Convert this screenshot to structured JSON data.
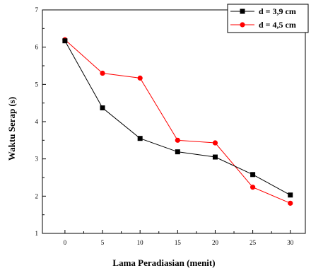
{
  "chart_data": {
    "type": "line",
    "title": "",
    "xlabel": "Lama Peradiasian (menit)",
    "ylabel": "Waktu Serap (s)",
    "xlim": [
      -3,
      32
    ],
    "ylim": [
      1,
      7
    ],
    "x_ticks": [
      0,
      5,
      10,
      15,
      20,
      25,
      30
    ],
    "y_ticks": [
      1,
      2,
      3,
      4,
      5,
      6,
      7
    ],
    "grid": false,
    "legend_position": "top-right",
    "series": [
      {
        "name": "d = 3,9 cm",
        "color": "#000000",
        "marker": "square",
        "x": [
          0,
          5,
          10,
          15,
          20,
          25,
          30
        ],
        "y": [
          6.17,
          4.37,
          3.55,
          3.19,
          3.05,
          2.58,
          2.03
        ]
      },
      {
        "name": "d = 4,5 cm",
        "color": "#ff0000",
        "marker": "circle",
        "x": [
          0,
          5,
          10,
          15,
          20,
          25,
          30
        ],
        "y": [
          6.2,
          5.3,
          5.17,
          3.5,
          3.43,
          2.24,
          1.81
        ]
      }
    ]
  }
}
